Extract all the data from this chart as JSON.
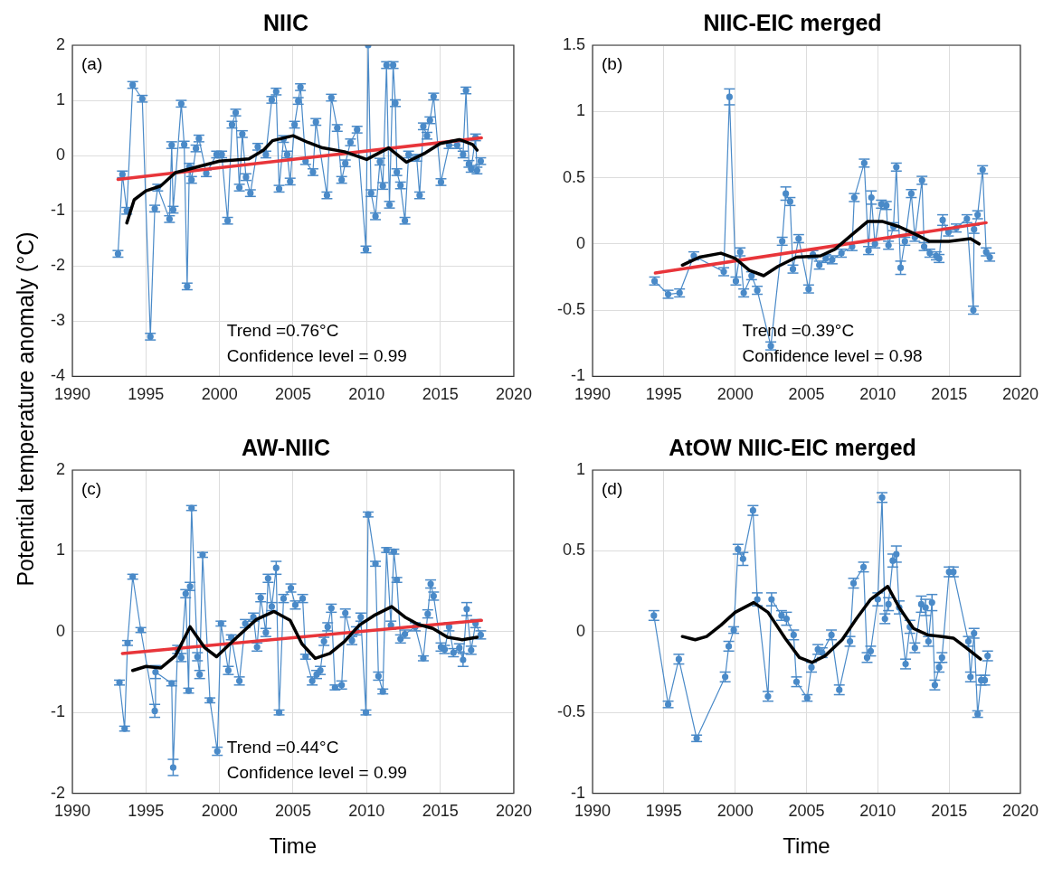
{
  "chart_data": [
    {
      "type": "line",
      "title": "NIIC",
      "ylabel": "Potential temperature  anomaly (°C)",
      "annotations": [
        "(a)",
        "Trend =0.76°C",
        "Confidence level = 0.99"
      ],
      "xlim": [
        1990,
        2020
      ],
      "xticks": [
        1990,
        1995,
        2000,
        2005,
        2010,
        2015,
        2020
      ],
      "ylim": [
        -4,
        2
      ],
      "yticks": [
        -4,
        -3,
        -2,
        -1,
        0,
        1,
        2
      ],
      "grid": true,
      "legend": false,
      "series": [
        {
          "color": "#4a8ac8",
          "marker": "circle",
          "x": [
            1993.1,
            1993.4,
            1993.7,
            1994.1,
            1994.75,
            1995.3,
            1995.6,
            1995.8,
            1996.6,
            1996.75,
            1996.85,
            1997.4,
            1997.6,
            1997.8,
            1997.95,
            1998.1,
            1998.4,
            1998.6,
            1999.1,
            1999.8,
            2000.15,
            2000.55,
            2000.85,
            2001.1,
            2001.35,
            2001.55,
            2001.8,
            2002.1,
            2002.6,
            2003.15,
            2003.55,
            2003.85,
            2004.05,
            2004.35,
            2004.6,
            2004.8,
            2005.1,
            2005.35,
            2005.5,
            2005.85,
            2006.35,
            2006.55,
            2007.3,
            2007.6,
            2008.0,
            2008.3,
            2008.55,
            2008.9,
            2009.35,
            2009.95,
            2010.1,
            2010.3,
            2010.6,
            2010.9,
            2011.1,
            2011.35,
            2011.55,
            2011.8,
            2011.95,
            2012.05,
            2012.3,
            2012.6,
            2012.85,
            2013.4,
            2013.6,
            2013.85,
            2014.1,
            2014.3,
            2014.55,
            2015.05,
            2015.6,
            2016.15,
            2016.55,
            2016.75,
            2016.95,
            2017.1,
            2017.4,
            2017.5,
            2017.75
          ],
          "values": [
            -1.78,
            -0.34,
            -1.0,
            1.28,
            1.03,
            -3.28,
            -0.96,
            -0.58,
            -1.15,
            0.19,
            -0.98,
            0.94,
            0.2,
            -2.37,
            -0.2,
            -0.44,
            0.13,
            0.31,
            -0.32,
            0.02,
            0.02,
            -1.18,
            0.56,
            0.78,
            -0.58,
            0.39,
            -0.39,
            -0.68,
            0.16,
            0.02,
            1.01,
            1.16,
            -0.6,
            0.3,
            0.02,
            -0.47,
            0.56,
            0.99,
            1.24,
            -0.1,
            -0.3,
            0.61,
            -0.72,
            1.05,
            0.5,
            -0.44,
            -0.14,
            0.24,
            0.47,
            -1.7,
            2.0,
            -0.68,
            -1.1,
            -0.11,
            -0.55,
            1.64,
            -0.89,
            1.64,
            0.95,
            -0.3,
            -0.54,
            -1.18,
            0.02,
            -0.04,
            -0.72,
            0.53,
            0.36,
            0.64,
            1.07,
            -0.48,
            0.19,
            0.19,
            0.02,
            1.18,
            -0.15,
            -0.24,
            0.33,
            -0.27,
            -0.1
          ],
          "errors": [
            0.06,
            0.06,
            0.06,
            0.06,
            0.06,
            0.06,
            0.06,
            0.06,
            0.06,
            0.06,
            0.06,
            0.06,
            0.06,
            0.06,
            0.06,
            0.06,
            0.06,
            0.06,
            0.06,
            0.06,
            0.06,
            0.06,
            0.06,
            0.06,
            0.06,
            0.06,
            0.06,
            0.06,
            0.06,
            0.06,
            0.06,
            0.06,
            0.06,
            0.06,
            0.06,
            0.06,
            0.06,
            0.06,
            0.06,
            0.06,
            0.06,
            0.06,
            0.06,
            0.06,
            0.06,
            0.06,
            0.06,
            0.06,
            0.06,
            0.06,
            null,
            0.06,
            0.06,
            0.06,
            0.06,
            0.06,
            0.06,
            0.06,
            0.06,
            0.06,
            0.06,
            0.06,
            0.06,
            0.06,
            0.06,
            0.06,
            0.06,
            0.06,
            0.06,
            0.06,
            0.06,
            0.06,
            0.06,
            0.06,
            0.06,
            0.06,
            0.06,
            0.06,
            0.06
          ]
        },
        {
          "type": "line",
          "color": "#e8353a",
          "marker": "none",
          "x": [
            1993.1,
            2017.8
          ],
          "values": [
            -0.43,
            0.32
          ]
        },
        {
          "type": "line",
          "color": "#000000",
          "marker": "none",
          "x": [
            1993.7,
            1994.2,
            1995,
            1996,
            1997,
            1998,
            2000,
            2002,
            2003,
            2003.6,
            2005,
            2006,
            2007,
            2008.5,
            2010,
            2011.5,
            2012.7,
            2014,
            2015,
            2016.3,
            2017.2,
            2017.5
          ],
          "values": [
            -1.22,
            -0.8,
            -0.64,
            -0.55,
            -0.31,
            -0.24,
            -0.1,
            -0.06,
            0.1,
            0.27,
            0.36,
            0.24,
            0.14,
            0.07,
            -0.07,
            0.14,
            -0.12,
            0.05,
            0.22,
            0.29,
            0.2,
            0.1
          ]
        }
      ]
    },
    {
      "type": "line",
      "title": "NIIC-EIC merged",
      "annotations": [
        "(b)",
        "Trend =0.39°C",
        "Confidence level = 0.98"
      ],
      "xlim": [
        1990,
        2020
      ],
      "xticks": [
        1990,
        1995,
        2000,
        2005,
        2010,
        2015,
        2020
      ],
      "ylim": [
        -1,
        1.5
      ],
      "yticks": [
        -1,
        -0.5,
        0,
        0.5,
        1,
        1.5
      ],
      "grid": true,
      "legend": false,
      "series": [
        {
          "color": "#4a8ac8",
          "marker": "circle",
          "x": [
            1994.35,
            1995.3,
            1996.1,
            1997.1,
            1999.2,
            1999.6,
            2000.05,
            2000.35,
            2000.6,
            2001.15,
            2001.55,
            2002.5,
            2003.3,
            2003.55,
            2003.85,
            2004.05,
            2004.45,
            2005.15,
            2005.45,
            2005.9,
            2006.35,
            2006.8,
            2007.45,
            2008.2,
            2008.35,
            2009.05,
            2009.35,
            2009.55,
            2009.8,
            2010.25,
            2010.6,
            2010.75,
            2011.1,
            2011.3,
            2011.6,
            2011.9,
            2012.35,
            2012.6,
            2013.1,
            2013.25,
            2013.65,
            2014.1,
            2014.3,
            2014.55,
            2014.95,
            2015.5,
            2016.25,
            2016.7,
            2016.75,
            2017.0,
            2017.35,
            2017.6,
            2017.85
          ],
          "values": [
            -0.28,
            -0.38,
            -0.37,
            -0.09,
            -0.21,
            1.11,
            -0.28,
            -0.06,
            -0.37,
            -0.24,
            -0.35,
            -0.77,
            0.02,
            0.38,
            0.32,
            -0.19,
            0.04,
            -0.34,
            -0.08,
            -0.16,
            -0.11,
            -0.12,
            -0.07,
            -0.02,
            0.35,
            0.61,
            -0.05,
            0.35,
            0.0,
            0.3,
            0.29,
            -0.01,
            0.13,
            0.58,
            -0.18,
            0.02,
            0.38,
            0.05,
            0.48,
            -0.02,
            -0.07,
            -0.09,
            -0.11,
            0.18,
            0.09,
            0.12,
            0.19,
            -0.5,
            0.11,
            0.22,
            0.56,
            -0.06,
            -0.1
          ],
          "errors": [
            0.03,
            0.03,
            0.03,
            0.03,
            0.03,
            0.06,
            0.03,
            0.03,
            0.03,
            0.03,
            0.03,
            0.03,
            0.03,
            0.05,
            0.03,
            0.03,
            0.03,
            0.03,
            0.03,
            0.03,
            0.03,
            0.03,
            0.03,
            0.03,
            0.03,
            0.03,
            0.03,
            0.05,
            0.03,
            0.03,
            0.03,
            0.03,
            0.03,
            0.03,
            0.05,
            0.03,
            0.03,
            0.03,
            0.03,
            0.03,
            0.03,
            0.03,
            0.03,
            0.04,
            0.03,
            0.03,
            0.03,
            0.03,
            0.03,
            0.03,
            0.03,
            0.03,
            0.03
          ]
        },
        {
          "type": "line",
          "color": "#e8353a",
          "marker": "none",
          "x": [
            1994.4,
            2017.6
          ],
          "values": [
            -0.22,
            0.16
          ]
        },
        {
          "type": "line",
          "color": "#000000",
          "marker": "none",
          "x": [
            1996.3,
            1997.5,
            1999,
            2000,
            2001,
            2002,
            2003,
            2004.3,
            2006,
            2007,
            2008.3,
            2009.3,
            2010.3,
            2011.5,
            2012.5,
            2013.6,
            2015,
            2016.5,
            2017.1
          ],
          "values": [
            -0.16,
            -0.1,
            -0.07,
            -0.11,
            -0.2,
            -0.24,
            -0.17,
            -0.1,
            -0.09,
            -0.04,
            0.08,
            0.17,
            0.17,
            0.13,
            0.08,
            0.02,
            0.02,
            0.04,
            0.0
          ]
        }
      ]
    },
    {
      "type": "line",
      "title": "AW-NIIC",
      "xlabel": "Time",
      "annotations": [
        "(c)",
        "Trend =0.44°C",
        "Confidence level = 0.99"
      ],
      "xlim": [
        1990,
        2020
      ],
      "xticks": [
        1990,
        1995,
        2000,
        2005,
        2010,
        2015,
        2020
      ],
      "ylim": [
        -2,
        2
      ],
      "yticks": [
        -2,
        -1,
        0,
        1,
        2
      ],
      "grid": true,
      "legend": false,
      "series": [
        {
          "color": "#4a8ac8",
          "marker": "circle",
          "x": [
            1993.2,
            1993.55,
            1993.75,
            1994.1,
            1994.65,
            1995.6,
            1995.65,
            1996.75,
            1996.85,
            1997.15,
            1997.4,
            1997.7,
            1997.9,
            1998.0,
            1998.1,
            1998.5,
            1998.65,
            1998.85,
            1999.35,
            1999.85,
            2000.1,
            2000.6,
            2000.8,
            2001.35,
            2001.75,
            2002.3,
            2002.55,
            2002.8,
            2003.15,
            2003.3,
            2003.55,
            2003.85,
            2004.05,
            2004.35,
            2004.85,
            2005.15,
            2005.65,
            2005.85,
            2006.3,
            2006.6,
            2006.85,
            2007.1,
            2007.35,
            2007.6,
            2007.85,
            2008.3,
            2008.55,
            2009.0,
            2009.3,
            2009.6,
            2009.95,
            2010.1,
            2010.6,
            2010.8,
            2011.1,
            2011.35,
            2011.65,
            2011.85,
            2012.05,
            2012.3,
            2012.6,
            2013.3,
            2013.85,
            2014.15,
            2014.35,
            2014.55,
            2015.05,
            2015.3,
            2015.6,
            2015.9,
            2016.3,
            2016.55,
            2016.8,
            2017.1,
            2017.4,
            2017.75
          ],
          "values": [
            -0.63,
            -1.2,
            -0.14,
            0.68,
            0.02,
            -0.98,
            -0.5,
            -0.64,
            -1.68,
            -0.22,
            -0.32,
            0.47,
            -0.73,
            0.56,
            1.53,
            -0.31,
            -0.53,
            0.95,
            -0.85,
            -1.48,
            0.1,
            -0.48,
            -0.07,
            -0.61,
            0.1,
            0.18,
            -0.19,
            0.42,
            -0.01,
            0.66,
            0.31,
            0.79,
            -1.0,
            0.41,
            0.54,
            0.33,
            0.41,
            -0.31,
            -0.61,
            -0.53,
            -0.48,
            -0.12,
            0.06,
            0.29,
            -0.69,
            -0.66,
            0.23,
            -0.11,
            0.01,
            0.18,
            -1.0,
            1.45,
            0.84,
            -0.55,
            -0.74,
            1.01,
            0.08,
            0.99,
            0.64,
            -0.09,
            -0.03,
            0.06,
            -0.33,
            0.22,
            0.59,
            0.44,
            -0.19,
            -0.22,
            0.06,
            -0.26,
            -0.2,
            -0.35,
            0.28,
            -0.23,
            0.1,
            -0.04
          ],
          "errors": [
            0.03,
            0.03,
            0.03,
            0.03,
            0.03,
            0.08,
            0.08,
            0.03,
            0.1,
            0.05,
            0.05,
            0.05,
            0.03,
            0.05,
            0.03,
            0.05,
            0.05,
            0.03,
            0.03,
            0.05,
            0.03,
            0.05,
            0.03,
            0.05,
            0.05,
            0.05,
            0.05,
            0.05,
            0.05,
            0.05,
            0.05,
            0.08,
            0.03,
            0.05,
            0.05,
            0.05,
            0.05,
            0.03,
            0.05,
            0.05,
            0.05,
            0.05,
            0.05,
            0.05,
            0.03,
            0.05,
            0.05,
            0.05,
            0.05,
            0.05,
            0.03,
            0.03,
            0.03,
            0.05,
            0.03,
            0.03,
            0.05,
            0.03,
            0.03,
            0.05,
            0.05,
            0.05,
            0.03,
            0.05,
            0.05,
            0.05,
            0.05,
            0.05,
            0.05,
            0.05,
            0.05,
            0.08,
            0.08,
            0.05,
            0.05,
            0.05
          ]
        },
        {
          "type": "line",
          "color": "#e8353a",
          "marker": "none",
          "x": [
            1993.4,
            2017.8
          ],
          "values": [
            -0.27,
            0.14
          ]
        },
        {
          "type": "line",
          "color": "#000000",
          "marker": "none",
          "x": [
            1994.1,
            1995,
            1996,
            1997,
            1998,
            1999,
            1999.8,
            2001,
            2002.5,
            2003.7,
            2004.8,
            2005.6,
            2006.5,
            2007.5,
            2008.5,
            2009.5,
            2010.5,
            2011.7,
            2012.6,
            2013.5,
            2014.5,
            2015.5,
            2016.5,
            2017.5
          ],
          "values": [
            -0.48,
            -0.43,
            -0.45,
            -0.3,
            0.06,
            -0.2,
            -0.31,
            -0.1,
            0.15,
            0.25,
            0.14,
            -0.15,
            -0.33,
            -0.27,
            -0.12,
            0.08,
            0.2,
            0.31,
            0.18,
            0.09,
            0.04,
            -0.07,
            -0.1,
            -0.07
          ]
        }
      ]
    },
    {
      "type": "line",
      "title": "AtOW NIIC-EIC merged",
      "xlabel": "Time",
      "annotations": [
        "(d)"
      ],
      "xlim": [
        1990,
        2020
      ],
      "xticks": [
        1990,
        1995,
        2000,
        2005,
        2010,
        2015,
        2020
      ],
      "ylim": [
        -1,
        1
      ],
      "yticks": [
        -1,
        -0.5,
        0,
        0.5,
        1
      ],
      "grid": true,
      "legend": false,
      "series": [
        {
          "color": "#4a8ac8",
          "marker": "circle",
          "x": [
            1994.3,
            1995.3,
            1996.05,
            1997.3,
            1999.3,
            1999.55,
            1999.9,
            2000.2,
            2000.55,
            2001.25,
            2001.55,
            2002.3,
            2002.55,
            2003.25,
            2003.6,
            2004.1,
            2004.3,
            2005.05,
            2005.35,
            2005.8,
            2006.1,
            2006.75,
            2007.3,
            2008.05,
            2008.3,
            2009.0,
            2009.25,
            2009.5,
            2010.0,
            2010.3,
            2010.5,
            2010.75,
            2011.05,
            2011.3,
            2011.5,
            2011.95,
            2012.25,
            2012.6,
            2013.05,
            2013.35,
            2013.55,
            2013.8,
            2014.0,
            2014.3,
            2014.5,
            2015.0,
            2015.3,
            2016.35,
            2016.5,
            2016.75,
            2017.0,
            2017.25,
            2017.5,
            2017.7
          ],
          "values": [
            0.1,
            -0.45,
            -0.17,
            -0.66,
            -0.28,
            -0.09,
            0.01,
            0.51,
            0.45,
            0.75,
            0.2,
            -0.4,
            0.2,
            0.1,
            0.08,
            -0.02,
            -0.31,
            -0.41,
            -0.22,
            -0.11,
            -0.13,
            -0.02,
            -0.36,
            -0.06,
            0.3,
            0.4,
            -0.16,
            -0.12,
            0.2,
            0.83,
            0.08,
            0.17,
            0.44,
            0.48,
            0.15,
            -0.2,
            0.03,
            -0.1,
            0.17,
            0.15,
            -0.06,
            0.18,
            -0.33,
            -0.22,
            -0.16,
            0.37,
            0.37,
            -0.06,
            -0.28,
            -0.01,
            -0.51,
            -0.3,
            -0.3,
            -0.15
          ],
          "errors": [
            0.03,
            0.02,
            0.03,
            0.02,
            0.03,
            0.03,
            0.02,
            0.03,
            0.04,
            0.03,
            0.04,
            0.03,
            0.04,
            0.03,
            0.04,
            0.03,
            0.03,
            0.02,
            0.03,
            0.03,
            0.03,
            0.03,
            0.03,
            0.03,
            0.03,
            0.03,
            0.03,
            0.03,
            0.04,
            0.03,
            0.03,
            0.04,
            0.04,
            0.05,
            0.04,
            0.03,
            0.04,
            0.03,
            0.05,
            0.05,
            0.03,
            0.05,
            0.03,
            0.03,
            0.03,
            0.03,
            0.03,
            0.03,
            0.03,
            0.03,
            0.02,
            0.03,
            0.03,
            0.03
          ]
        },
        {
          "type": "line",
          "color": "#000000",
          "marker": "none",
          "x": [
            1996.3,
            1997.2,
            1998,
            1999,
            2000,
            2001.3,
            2002.3,
            2003.5,
            2004.5,
            2005.4,
            2006.3,
            2007.5,
            2008.5,
            2009.5,
            2010.7,
            2011.5,
            2012.5,
            2013.5,
            2014.5,
            2015.3,
            2016.2,
            2017.2
          ],
          "values": [
            -0.03,
            -0.05,
            -0.03,
            0.04,
            0.12,
            0.18,
            0.12,
            -0.04,
            -0.16,
            -0.19,
            -0.15,
            -0.05,
            0.08,
            0.2,
            0.28,
            0.15,
            0.02,
            -0.02,
            -0.03,
            -0.04,
            -0.1,
            -0.17
          ]
        }
      ]
    }
  ]
}
